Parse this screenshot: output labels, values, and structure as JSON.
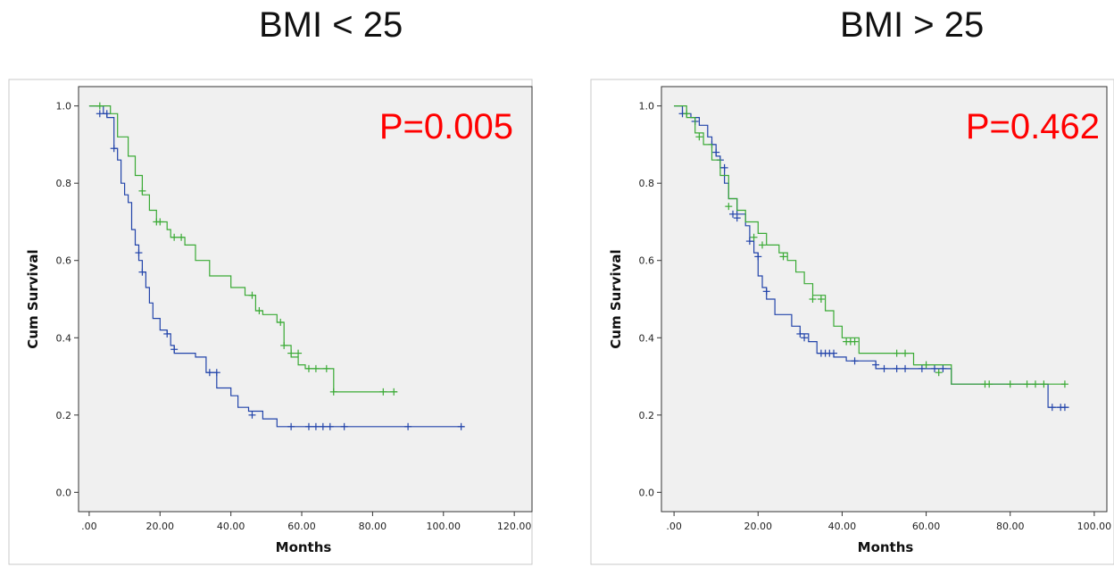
{
  "chart_data": [
    {
      "type": "line",
      "title": "BMI < 25",
      "annotation": "P=0.005",
      "xlabel": "Months",
      "ylabel": "Cum Survival",
      "xlim": [
        -3,
        125
      ],
      "ylim": [
        -0.05,
        1.05
      ],
      "x_ticks": [
        ".00",
        "20.00",
        "40.00",
        "60.00",
        "80.00",
        "100.00",
        "120.00"
      ],
      "x_tick_values": [
        0,
        20,
        40,
        60,
        80,
        100,
        120
      ],
      "y_ticks": [
        "0.0",
        "0.2",
        "0.4",
        "0.6",
        "0.8",
        "1.0"
      ],
      "y_tick_values": [
        0,
        0.2,
        0.4,
        0.6,
        0.8,
        1.0
      ],
      "series": [
        {
          "color": "#2244aa",
          "points": [
            [
              0,
              1.0
            ],
            [
              4,
              0.98
            ],
            [
              5,
              0.97
            ],
            [
              7,
              0.89
            ],
            [
              8,
              0.86
            ],
            [
              9,
              0.8
            ],
            [
              10,
              0.77
            ],
            [
              11,
              0.75
            ],
            [
              12,
              0.68
            ],
            [
              13,
              0.64
            ],
            [
              14,
              0.6
            ],
            [
              15,
              0.57
            ],
            [
              16,
              0.53
            ],
            [
              17,
              0.49
            ],
            [
              18,
              0.45
            ],
            [
              20,
              0.42
            ],
            [
              22,
              0.41
            ],
            [
              23,
              0.38
            ],
            [
              24,
              0.36
            ],
            [
              30,
              0.35
            ],
            [
              33,
              0.31
            ],
            [
              36,
              0.27
            ],
            [
              40,
              0.25
            ],
            [
              42,
              0.22
            ],
            [
              45,
              0.21
            ],
            [
              49,
              0.19
            ],
            [
              53,
              0.17
            ],
            [
              106,
              0.17
            ]
          ],
          "censored": [
            [
              3,
              0.98
            ],
            [
              5,
              0.98
            ],
            [
              7,
              0.89
            ],
            [
              14,
              0.62
            ],
            [
              15,
              0.57
            ],
            [
              22,
              0.41
            ],
            [
              24,
              0.37
            ],
            [
              34,
              0.31
            ],
            [
              36,
              0.31
            ],
            [
              46,
              0.2
            ],
            [
              57,
              0.17
            ],
            [
              62,
              0.17
            ],
            [
              64,
              0.17
            ],
            [
              66,
              0.17
            ],
            [
              68,
              0.17
            ],
            [
              72,
              0.17
            ],
            [
              90,
              0.17
            ],
            [
              105,
              0.17
            ]
          ]
        },
        {
          "color": "#3aaa35",
          "points": [
            [
              0,
              1.0
            ],
            [
              5,
              1.0
            ],
            [
              6,
              0.98
            ],
            [
              8,
              0.92
            ],
            [
              11,
              0.87
            ],
            [
              13,
              0.82
            ],
            [
              15,
              0.77
            ],
            [
              17,
              0.73
            ],
            [
              19,
              0.7
            ],
            [
              22,
              0.68
            ],
            [
              23,
              0.66
            ],
            [
              27,
              0.64
            ],
            [
              30,
              0.6
            ],
            [
              34,
              0.56
            ],
            [
              40,
              0.53
            ],
            [
              44,
              0.51
            ],
            [
              47,
              0.47
            ],
            [
              49,
              0.46
            ],
            [
              53,
              0.44
            ],
            [
              55,
              0.38
            ],
            [
              57,
              0.35
            ],
            [
              59,
              0.33
            ],
            [
              61,
              0.32
            ],
            [
              69,
              0.26
            ],
            [
              87,
              0.26
            ]
          ],
          "censored": [
            [
              3,
              1.0
            ],
            [
              15,
              0.78
            ],
            [
              19,
              0.7
            ],
            [
              20,
              0.7
            ],
            [
              24,
              0.66
            ],
            [
              26,
              0.66
            ],
            [
              46,
              0.51
            ],
            [
              48,
              0.47
            ],
            [
              54,
              0.44
            ],
            [
              55,
              0.38
            ],
            [
              57,
              0.36
            ],
            [
              59,
              0.36
            ],
            [
              62,
              0.32
            ],
            [
              64,
              0.32
            ],
            [
              67,
              0.32
            ],
            [
              69,
              0.26
            ],
            [
              83,
              0.26
            ],
            [
              86,
              0.26
            ]
          ]
        }
      ]
    },
    {
      "type": "line",
      "title": "BMI > 25",
      "annotation": "P=0.462",
      "xlabel": "Months",
      "ylabel": "Cum Survival",
      "xlim": [
        -3,
        103
      ],
      "ylim": [
        -0.05,
        1.05
      ],
      "x_ticks": [
        ".00",
        "20.00",
        "40.00",
        "60.00",
        "80.00",
        "100.00"
      ],
      "x_tick_values": [
        0,
        20,
        40,
        60,
        80,
        100
      ],
      "y_ticks": [
        "0.0",
        "0.2",
        "0.4",
        "0.6",
        "0.8",
        "1.0"
      ],
      "y_tick_values": [
        0,
        0.2,
        0.4,
        0.6,
        0.8,
        1.0
      ],
      "series": [
        {
          "color": "#2244aa",
          "points": [
            [
              0,
              1.0
            ],
            [
              2,
              0.98
            ],
            [
              4,
              0.97
            ],
            [
              6,
              0.95
            ],
            [
              8,
              0.92
            ],
            [
              9,
              0.9
            ],
            [
              10,
              0.87
            ],
            [
              11,
              0.84
            ],
            [
              12,
              0.8
            ],
            [
              13,
              0.76
            ],
            [
              15,
              0.72
            ],
            [
              17,
              0.69
            ],
            [
              18,
              0.65
            ],
            [
              19,
              0.62
            ],
            [
              20,
              0.56
            ],
            [
              21,
              0.53
            ],
            [
              22,
              0.5
            ],
            [
              24,
              0.46
            ],
            [
              28,
              0.43
            ],
            [
              30,
              0.41
            ],
            [
              32,
              0.39
            ],
            [
              34,
              0.36
            ],
            [
              38,
              0.35
            ],
            [
              41,
              0.34
            ],
            [
              48,
              0.32
            ],
            [
              66,
              0.28
            ],
            [
              89,
              0.22
            ],
            [
              94,
              0.22
            ]
          ],
          "censored": [
            [
              2,
              0.98
            ],
            [
              5,
              0.96
            ],
            [
              9,
              0.9
            ],
            [
              10,
              0.88
            ],
            [
              11,
              0.86
            ],
            [
              12,
              0.84
            ],
            [
              14,
              0.72
            ],
            [
              15,
              0.71
            ],
            [
              18,
              0.65
            ],
            [
              20,
              0.61
            ],
            [
              22,
              0.52
            ],
            [
              30,
              0.41
            ],
            [
              31,
              0.4
            ],
            [
              35,
              0.36
            ],
            [
              36,
              0.36
            ],
            [
              37,
              0.36
            ],
            [
              38,
              0.36
            ],
            [
              43,
              0.34
            ],
            [
              48,
              0.33
            ],
            [
              50,
              0.32
            ],
            [
              53,
              0.32
            ],
            [
              55,
              0.32
            ],
            [
              59,
              0.32
            ],
            [
              62,
              0.32
            ],
            [
              64,
              0.32
            ],
            [
              90,
              0.22
            ],
            [
              92,
              0.22
            ],
            [
              93,
              0.22
            ]
          ]
        },
        {
          "color": "#3aaa35",
          "points": [
            [
              0,
              1.0
            ],
            [
              3,
              0.97
            ],
            [
              5,
              0.93
            ],
            [
              7,
              0.9
            ],
            [
              9,
              0.86
            ],
            [
              11,
              0.82
            ],
            [
              13,
              0.76
            ],
            [
              15,
              0.73
            ],
            [
              17,
              0.7
            ],
            [
              20,
              0.67
            ],
            [
              22,
              0.64
            ],
            [
              25,
              0.62
            ],
            [
              27,
              0.6
            ],
            [
              29,
              0.57
            ],
            [
              31,
              0.54
            ],
            [
              33,
              0.51
            ],
            [
              36,
              0.47
            ],
            [
              38,
              0.43
            ],
            [
              40,
              0.4
            ],
            [
              44,
              0.36
            ],
            [
              55,
              0.36
            ],
            [
              57,
              0.33
            ],
            [
              66,
              0.28
            ],
            [
              93,
              0.28
            ]
          ],
          "censored": [
            [
              3,
              0.98
            ],
            [
              6,
              0.92
            ],
            [
              13,
              0.74
            ],
            [
              19,
              0.66
            ],
            [
              21,
              0.64
            ],
            [
              26,
              0.61
            ],
            [
              33,
              0.5
            ],
            [
              35,
              0.5
            ],
            [
              41,
              0.39
            ],
            [
              42,
              0.39
            ],
            [
              43,
              0.39
            ],
            [
              53,
              0.36
            ],
            [
              55,
              0.36
            ],
            [
              60,
              0.33
            ],
            [
              63,
              0.31
            ],
            [
              74,
              0.28
            ],
            [
              75,
              0.28
            ],
            [
              80,
              0.28
            ],
            [
              84,
              0.28
            ],
            [
              86,
              0.28
            ],
            [
              88,
              0.28
            ],
            [
              93,
              0.28
            ]
          ]
        }
      ]
    }
  ]
}
